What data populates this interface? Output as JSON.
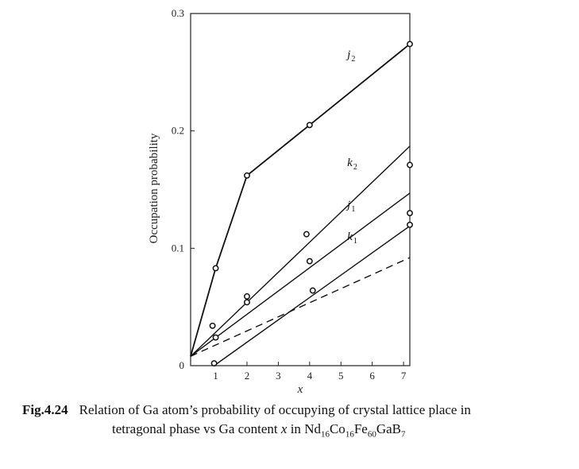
{
  "chart_data": {
    "type": "line",
    "xlabel": "x",
    "ylabel": "Occupation probability",
    "xlim": [
      0.2,
      7.2
    ],
    "ylim": [
      0,
      0.3
    ],
    "x_ticks": [
      1,
      2,
      3,
      4,
      5,
      6,
      7
    ],
    "y_ticks": [
      {
        "value": 0,
        "label": "0"
      },
      {
        "value": 0.1,
        "label": "0.1"
      },
      {
        "value": 0.2,
        "label": "0.2"
      },
      {
        "value": 0.3,
        "label": "0.3"
      }
    ],
    "grid": false,
    "series": [
      {
        "name": "j2",
        "letter": "j",
        "subscript": "2",
        "style": "solid",
        "kind": "polyline",
        "line": [
          [
            0.2,
            0.008
          ],
          [
            1.0,
            0.083
          ],
          [
            2.0,
            0.162
          ],
          [
            4.0,
            0.205
          ],
          [
            7.2,
            0.274
          ]
        ],
        "points": [
          [
            1.0,
            0.083
          ],
          [
            2.0,
            0.162
          ],
          [
            4.0,
            0.205
          ],
          [
            7.2,
            0.274
          ]
        ],
        "label_at": [
          5.2,
          0.262
        ]
      },
      {
        "name": "k2",
        "letter": "k",
        "subscript": "2",
        "style": "solid",
        "kind": "fit",
        "line": [
          [
            0.2,
            0.008
          ],
          [
            7.2,
            0.187
          ]
        ],
        "points": [
          [
            0.9,
            0.034
          ],
          [
            2.0,
            0.059
          ],
          [
            3.9,
            0.112
          ],
          [
            7.2,
            0.171
          ]
        ],
        "label_at": [
          5.2,
          0.17
        ]
      },
      {
        "name": "j1",
        "letter": "j",
        "subscript": "1",
        "style": "solid",
        "kind": "fit",
        "line": [
          [
            0.2,
            0.008
          ],
          [
            7.2,
            0.147
          ]
        ],
        "points": [
          [
            2.0,
            0.054
          ],
          [
            4.0,
            0.089
          ],
          [
            7.2,
            0.13
          ]
        ],
        "label_at": [
          5.2,
          0.134
        ]
      },
      {
        "name": "k1",
        "letter": "k",
        "subscript": "1",
        "style": "solid",
        "kind": "fit",
        "line": [
          [
            0.95,
            0.0
          ],
          [
            7.2,
            0.119
          ]
        ],
        "points": [
          [
            1.0,
            0.024
          ],
          [
            0.95,
            0.002
          ],
          [
            4.1,
            0.064
          ],
          [
            7.2,
            0.12
          ]
        ],
        "label_at": [
          5.2,
          0.107
        ]
      },
      {
        "name": "",
        "letter": "",
        "subscript": "",
        "style": "dashed",
        "kind": "fit",
        "line": [
          [
            0.2,
            0.008
          ],
          [
            7.2,
            0.092
          ]
        ],
        "points": [],
        "label_at": null
      }
    ]
  },
  "caption": {
    "fig_number": "Fig.4.24",
    "line1": "Relation of Ga atom’s probability of occupying of crystal lattice place in",
    "line2_prefix": "tetragonal phase vs Ga content ",
    "line2_var": "x",
    "line2_in": " in ",
    "formula": [
      {
        "t": "Nd"
      },
      {
        "s": "16"
      },
      {
        "t": "Co"
      },
      {
        "s": "16"
      },
      {
        "t": "Fe"
      },
      {
        "s": "60"
      },
      {
        "t": "GaB"
      },
      {
        "s": "7"
      }
    ]
  }
}
